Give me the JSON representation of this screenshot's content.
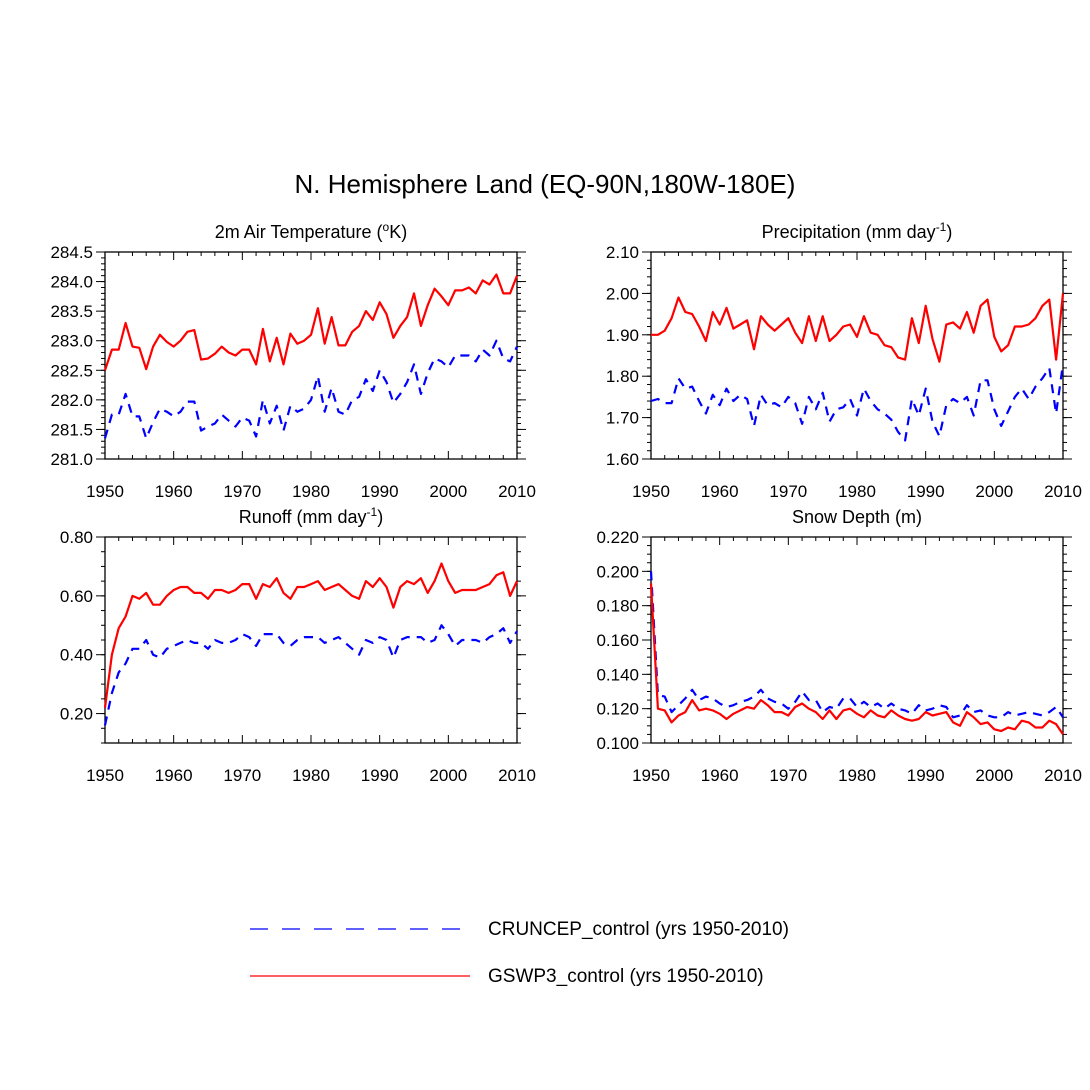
{
  "figure": {
    "title": "N. Hemisphere Land (EQ-90N,180W-180E)"
  },
  "legend": [
    {
      "label": "CRUNCEP_control (yrs 1950-2010)",
      "color": "#0000ff",
      "dash": true
    },
    {
      "label": "GSWP3_control (yrs 1950-2010)",
      "color": "#ff0000",
      "dash": false
    }
  ],
  "chart_data": [
    {
      "type": "line",
      "title": "2m Air Temperature (",
      "title_sup": "o",
      "title_after": "K)",
      "xlim": [
        1950,
        2010
      ],
      "ylim": [
        281.0,
        284.5
      ],
      "xticks": [
        1950,
        1960,
        1970,
        1980,
        1990,
        2000,
        2010
      ],
      "yticks": [
        281.0,
        281.5,
        282.0,
        282.5,
        283.0,
        283.5,
        284.0,
        284.5
      ],
      "ytick_labels": [
        "281.0",
        "281.5",
        "282.0",
        "282.5",
        "283.0",
        "283.5",
        "284.0",
        "284.5"
      ],
      "yminor": 0.1,
      "x_start": 1950,
      "series": [
        {
          "name": "CRUNCEP_control",
          "values": [
            281.35,
            281.75,
            281.75,
            282.1,
            281.72,
            281.72,
            281.35,
            281.62,
            281.85,
            281.8,
            281.72,
            281.8,
            281.97,
            281.97,
            281.48,
            281.55,
            281.6,
            281.75,
            281.65,
            281.55,
            281.7,
            281.65,
            281.38,
            282.0,
            281.6,
            281.9,
            281.48,
            281.9,
            281.8,
            281.85,
            282.0,
            282.4,
            281.8,
            282.2,
            281.8,
            281.75,
            282.0,
            282.05,
            282.35,
            282.15,
            282.5,
            282.3,
            281.95,
            282.1,
            282.3,
            282.6,
            282.1,
            282.45,
            282.7,
            282.65,
            282.55,
            282.75,
            282.75,
            282.75,
            282.65,
            282.85,
            282.75,
            283.0,
            282.7,
            282.65,
            282.9
          ]
        },
        {
          "name": "GSWP3_control",
          "values": [
            282.5,
            282.85,
            282.85,
            283.3,
            282.9,
            282.88,
            282.52,
            282.9,
            283.1,
            282.98,
            282.9,
            283.0,
            283.15,
            283.18,
            282.68,
            282.7,
            282.78,
            282.9,
            282.8,
            282.75,
            282.85,
            282.85,
            282.6,
            283.2,
            282.65,
            283.05,
            282.6,
            283.12,
            282.95,
            283.0,
            283.1,
            283.55,
            282.95,
            283.4,
            282.92,
            282.92,
            283.15,
            283.25,
            283.5,
            283.35,
            283.65,
            283.45,
            283.05,
            283.25,
            283.4,
            283.8,
            283.25,
            283.6,
            283.88,
            283.75,
            283.6,
            283.85,
            283.85,
            283.9,
            283.8,
            284.02,
            283.95,
            284.12,
            283.8,
            283.8,
            284.1
          ]
        }
      ]
    },
    {
      "type": "line",
      "title": "Precipitation (mm day",
      "title_sup": "-1",
      "title_after": ")",
      "xlim": [
        1950,
        2010
      ],
      "ylim": [
        1.6,
        2.1
      ],
      "xticks": [
        1950,
        1960,
        1970,
        1980,
        1990,
        2000,
        2010
      ],
      "yticks": [
        1.6,
        1.7,
        1.8,
        1.9,
        2.0,
        2.1
      ],
      "ytick_labels": [
        "1.60",
        "1.70",
        "1.80",
        "1.90",
        "2.00",
        "2.10"
      ],
      "yminor": 0.02,
      "x_start": 1950,
      "series": [
        {
          "name": "CRUNCEP_control",
          "values": [
            1.74,
            1.745,
            1.735,
            1.735,
            1.795,
            1.77,
            1.775,
            1.74,
            1.71,
            1.755,
            1.73,
            1.77,
            1.74,
            1.755,
            1.745,
            1.68,
            1.755,
            1.73,
            1.735,
            1.725,
            1.75,
            1.735,
            1.685,
            1.75,
            1.72,
            1.76,
            1.69,
            1.72,
            1.725,
            1.745,
            1.705,
            1.77,
            1.74,
            1.72,
            1.71,
            1.695,
            1.665,
            1.645,
            1.745,
            1.705,
            1.77,
            1.69,
            1.655,
            1.73,
            1.745,
            1.735,
            1.75,
            1.705,
            1.79,
            1.79,
            1.72,
            1.68,
            1.715,
            1.75,
            1.77,
            1.745,
            1.775,
            1.795,
            1.82,
            1.71,
            1.83
          ]
        },
        {
          "name": "GSWP3_control",
          "values": [
            1.9,
            1.9,
            1.91,
            1.94,
            1.99,
            1.955,
            1.95,
            1.92,
            1.885,
            1.955,
            1.925,
            1.965,
            1.915,
            1.925,
            1.935,
            1.865,
            1.945,
            1.925,
            1.91,
            1.925,
            1.94,
            1.905,
            1.88,
            1.945,
            1.885,
            1.945,
            1.885,
            1.9,
            1.92,
            1.925,
            1.895,
            1.945,
            1.905,
            1.9,
            1.875,
            1.87,
            1.845,
            1.84,
            1.94,
            1.88,
            1.97,
            1.89,
            1.835,
            1.925,
            1.93,
            1.915,
            1.955,
            1.905,
            1.97,
            1.985,
            1.895,
            1.86,
            1.875,
            1.92,
            1.92,
            1.925,
            1.94,
            1.97,
            1.985,
            1.84,
            2.0
          ]
        }
      ]
    },
    {
      "type": "line",
      "title": "Runoff (mm day",
      "title_sup": "-1",
      "title_after": ")",
      "xlim": [
        1950,
        2010
      ],
      "ylim": [
        0.1,
        0.8
      ],
      "xticks": [
        1950,
        1960,
        1970,
        1980,
        1990,
        2000,
        2010
      ],
      "yticks": [
        0.2,
        0.4,
        0.6,
        0.8
      ],
      "ytick_labels": [
        "0.20",
        "0.40",
        "0.60",
        "0.80"
      ],
      "yminor": 0.05,
      "x_start": 1950,
      "series": [
        {
          "name": "CRUNCEP_control",
          "values": [
            0.16,
            0.27,
            0.34,
            0.37,
            0.42,
            0.42,
            0.45,
            0.4,
            0.39,
            0.42,
            0.43,
            0.44,
            0.45,
            0.44,
            0.44,
            0.42,
            0.45,
            0.44,
            0.44,
            0.45,
            0.47,
            0.46,
            0.43,
            0.47,
            0.47,
            0.47,
            0.44,
            0.43,
            0.45,
            0.46,
            0.46,
            0.46,
            0.44,
            0.45,
            0.46,
            0.44,
            0.42,
            0.4,
            0.45,
            0.44,
            0.46,
            0.45,
            0.39,
            0.45,
            0.46,
            0.46,
            0.46,
            0.44,
            0.45,
            0.5,
            0.47,
            0.43,
            0.45,
            0.45,
            0.45,
            0.44,
            0.46,
            0.47,
            0.49,
            0.44,
            0.48
          ]
        },
        {
          "name": "GSWP3_control",
          "values": [
            0.22,
            0.4,
            0.49,
            0.53,
            0.6,
            0.59,
            0.61,
            0.57,
            0.57,
            0.6,
            0.62,
            0.63,
            0.63,
            0.61,
            0.61,
            0.59,
            0.62,
            0.62,
            0.61,
            0.62,
            0.64,
            0.64,
            0.59,
            0.64,
            0.63,
            0.66,
            0.61,
            0.59,
            0.63,
            0.63,
            0.64,
            0.65,
            0.62,
            0.63,
            0.64,
            0.62,
            0.6,
            0.59,
            0.65,
            0.63,
            0.66,
            0.63,
            0.56,
            0.63,
            0.65,
            0.64,
            0.66,
            0.61,
            0.65,
            0.71,
            0.65,
            0.61,
            0.62,
            0.62,
            0.62,
            0.63,
            0.64,
            0.67,
            0.68,
            0.6,
            0.65
          ]
        }
      ]
    },
    {
      "type": "line",
      "title": "Snow Depth (m)",
      "title_sup": "",
      "title_after": "",
      "xlim": [
        1950,
        2010
      ],
      "ylim": [
        0.1,
        0.22
      ],
      "xticks": [
        1950,
        1960,
        1970,
        1980,
        1990,
        2000,
        2010
      ],
      "yticks": [
        0.1,
        0.12,
        0.14,
        0.16,
        0.18,
        0.2,
        0.22
      ],
      "ytick_labels": [
        "0.100",
        "0.120",
        "0.140",
        "0.160",
        "0.180",
        "0.200",
        "0.220"
      ],
      "yminor": 0.005,
      "x_start": 1950,
      "series": [
        {
          "name": "CRUNCEP_control",
          "values": [
            0.2,
            0.128,
            0.127,
            0.118,
            0.122,
            0.126,
            0.131,
            0.125,
            0.127,
            0.126,
            0.123,
            0.121,
            0.122,
            0.124,
            0.125,
            0.127,
            0.131,
            0.126,
            0.124,
            0.123,
            0.12,
            0.124,
            0.13,
            0.125,
            0.125,
            0.118,
            0.121,
            0.12,
            0.126,
            0.126,
            0.121,
            0.124,
            0.121,
            0.123,
            0.12,
            0.123,
            0.12,
            0.119,
            0.117,
            0.122,
            0.119,
            0.12,
            0.122,
            0.121,
            0.115,
            0.116,
            0.122,
            0.118,
            0.119,
            0.116,
            0.115,
            0.115,
            0.118,
            0.116,
            0.117,
            0.118,
            0.117,
            0.116,
            0.118,
            0.121,
            0.115
          ]
        },
        {
          "name": "GSWP3_control",
          "values": [
            0.193,
            0.12,
            0.119,
            0.112,
            0.116,
            0.118,
            0.125,
            0.119,
            0.12,
            0.119,
            0.117,
            0.114,
            0.117,
            0.119,
            0.121,
            0.12,
            0.125,
            0.122,
            0.118,
            0.118,
            0.116,
            0.121,
            0.123,
            0.12,
            0.118,
            0.114,
            0.119,
            0.114,
            0.119,
            0.12,
            0.117,
            0.115,
            0.119,
            0.116,
            0.115,
            0.119,
            0.116,
            0.114,
            0.113,
            0.114,
            0.118,
            0.116,
            0.117,
            0.118,
            0.112,
            0.11,
            0.118,
            0.115,
            0.111,
            0.112,
            0.108,
            0.107,
            0.109,
            0.108,
            0.113,
            0.112,
            0.109,
            0.109,
            0.113,
            0.111,
            0.105
          ]
        }
      ]
    }
  ]
}
